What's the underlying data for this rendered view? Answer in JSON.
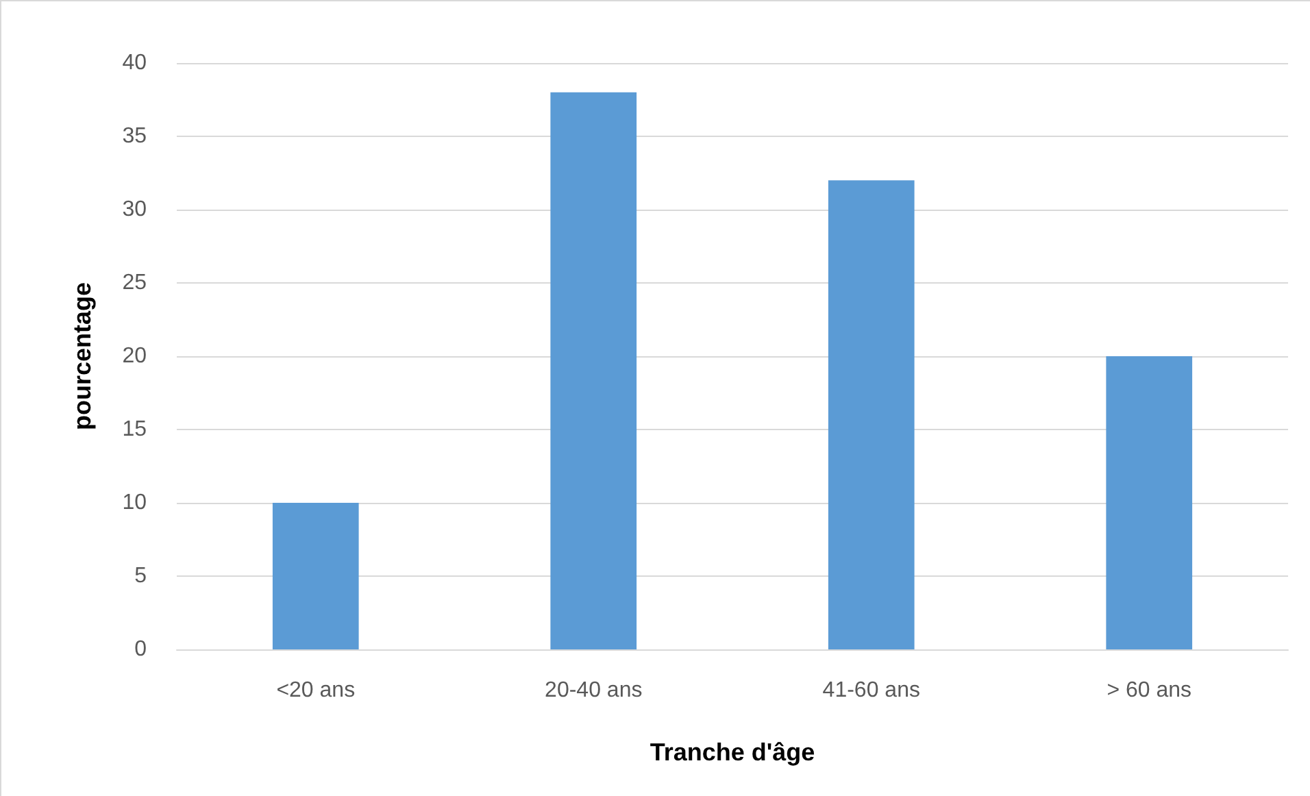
{
  "chart_data": {
    "type": "bar",
    "xlabel": "Tranche d'âge",
    "ylabel": "pourcentage",
    "categories": [
      "<20 ans",
      "20-40 ans",
      "41-60 ans",
      "> 60 ans"
    ],
    "values": [
      10,
      38,
      32,
      20
    ],
    "color": "#5b9bd5",
    "ylim": [
      0,
      40
    ],
    "yticks": [
      0,
      5,
      10,
      15,
      20,
      25,
      30,
      35,
      40
    ],
    "grid": "y"
  }
}
